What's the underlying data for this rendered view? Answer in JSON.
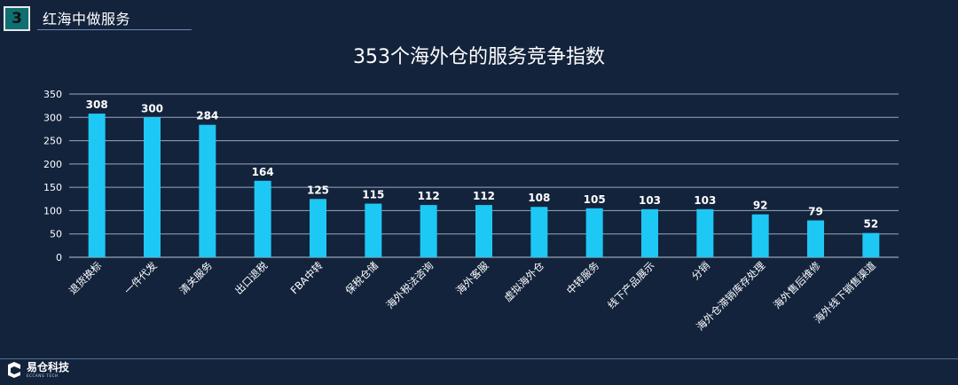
{
  "header": {
    "badge": "3",
    "title": "红海中做服务"
  },
  "logo": {
    "name": "易仓科技",
    "sub": "ECCANG TECH"
  },
  "chart_data": {
    "type": "bar",
    "title": "353个海外仓的服务竞争指数",
    "xlabel": "",
    "ylabel": "",
    "ylim": [
      0,
      350
    ],
    "yticks": [
      0,
      50,
      100,
      150,
      200,
      250,
      300,
      350
    ],
    "grid": true,
    "legend": "none",
    "bar_color": "#1ec8f4",
    "categories": [
      "退货换标",
      "一件代发",
      "清关服务",
      "出口退税",
      "FBA中转",
      "保税仓储",
      "海外税法咨询",
      "海外客服",
      "虚拟海外仓",
      "中转服务",
      "线下产品展示",
      "分销",
      "海外仓滞销库存处理",
      "海外售后维修",
      "海外线下销售渠道"
    ],
    "values": [
      308,
      300,
      284,
      164,
      125,
      115,
      112,
      112,
      108,
      105,
      103,
      103,
      92,
      79,
      52
    ]
  }
}
